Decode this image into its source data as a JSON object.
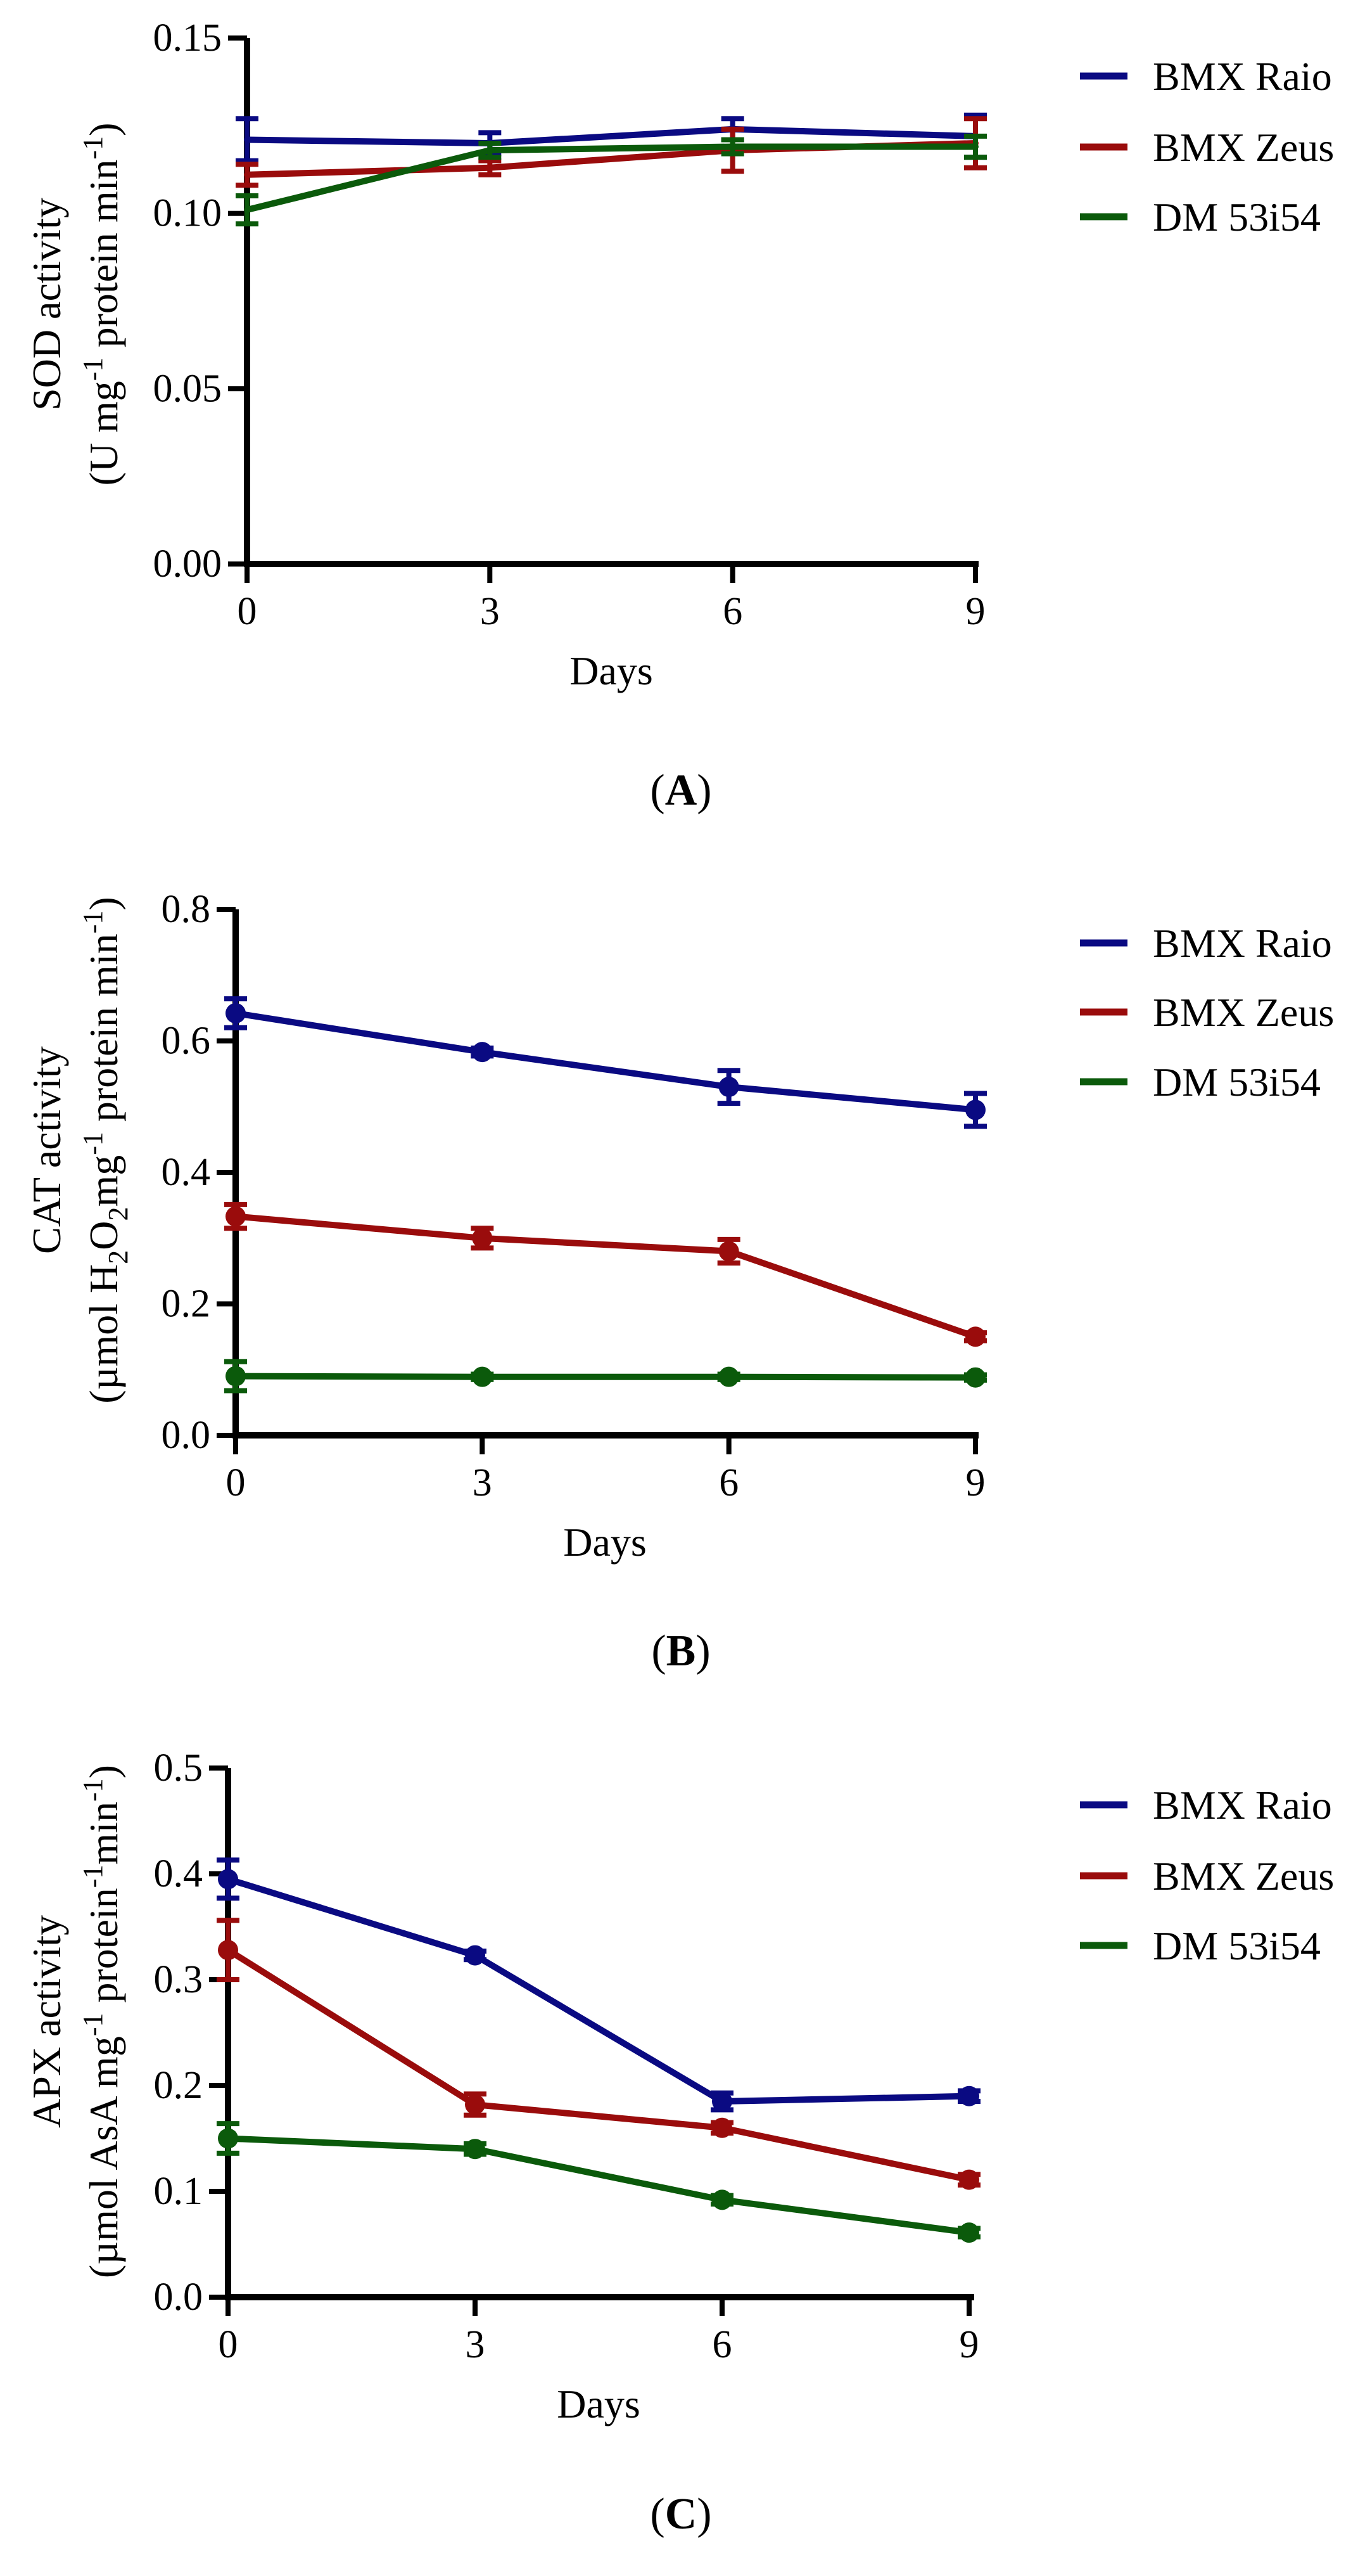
{
  "colors": {
    "BMX Raio": "#0a0a82",
    "BMX Zeus": "#9a0c0c",
    "DM 53i54": "#0b5a0b"
  },
  "chart_data": [
    {
      "type": "line",
      "panel": "A",
      "panel_label": {
        "open": "(",
        "letter": "A",
        "close": ")"
      },
      "xlabel": "Days",
      "ylabel_line1": "SOD activity",
      "ylabel_line2": {
        "pre": "(U mg",
        "sup1": "-1",
        "mid": " protein min",
        "sup2": "-1",
        "post": ")"
      },
      "x": [
        0,
        3,
        6,
        9
      ],
      "xlim": [
        0,
        9
      ],
      "ylim": [
        0,
        0.15
      ],
      "yticks": [
        0,
        0.05,
        0.1,
        0.15
      ],
      "ytick_labels": [
        "0.00",
        "0.05",
        "0.10",
        "0.15"
      ],
      "xtick_labels": [
        "0",
        "3",
        "6",
        "9"
      ],
      "markers": false,
      "legend_position": "right",
      "series": [
        {
          "name": "BMX Raio",
          "values": [
            0.121,
            0.12,
            0.124,
            0.122
          ],
          "errors": [
            0.006,
            0.003,
            0.003,
            0.006
          ]
        },
        {
          "name": "BMX Zeus",
          "values": [
            0.111,
            0.113,
            0.118,
            0.12
          ],
          "errors": [
            0.003,
            0.002,
            0.006,
            0.007
          ]
        },
        {
          "name": "DM 53i54",
          "values": [
            0.101,
            0.118,
            0.119,
            0.119
          ],
          "errors": [
            0.004,
            0.002,
            0.002,
            0.003
          ]
        }
      ]
    },
    {
      "type": "line",
      "panel": "B",
      "panel_label": {
        "open": "(",
        "letter": "B",
        "close": ")"
      },
      "xlabel": "Days",
      "ylabel_line1": "CAT activity",
      "ylabel_line2": {
        "pre": "(µmol H",
        "sub1": "2",
        "mid1": "O",
        "sub2": "2",
        "mid2": "mg",
        "sup1": "-1",
        "mid3": " protein min",
        "sup2": "-1",
        "post": ")"
      },
      "x": [
        0,
        3,
        6,
        9
      ],
      "xlim": [
        0,
        9
      ],
      "ylim": [
        0,
        0.8
      ],
      "yticks": [
        0,
        0.2,
        0.4,
        0.6,
        0.8
      ],
      "ytick_labels": [
        "0.0",
        "0.2",
        "0.4",
        "0.6",
        "0.8"
      ],
      "xtick_labels": [
        "0",
        "3",
        "6",
        "9"
      ],
      "markers": true,
      "legend_position": "right",
      "series": [
        {
          "name": "BMX Raio",
          "values": [
            0.642,
            0.583,
            0.53,
            0.495
          ],
          "errors": [
            0.022,
            0.006,
            0.025,
            0.025
          ]
        },
        {
          "name": "BMX Zeus",
          "values": [
            0.333,
            0.3,
            0.28,
            0.15
          ],
          "errors": [
            0.018,
            0.015,
            0.018,
            0.006
          ]
        },
        {
          "name": "DM 53i54",
          "values": [
            0.09,
            0.089,
            0.089,
            0.088
          ],
          "errors": [
            0.022,
            0.004,
            0.004,
            0.004
          ]
        }
      ]
    },
    {
      "type": "line",
      "panel": "C",
      "panel_label": {
        "open": "(",
        "letter": "C",
        "close": ")"
      },
      "xlabel": "Days",
      "ylabel_line1": "APX activity",
      "ylabel_line2": {
        "pre": "(µmol AsA mg",
        "sup1": "-1",
        "mid": " protein",
        "sup2": "-1",
        "mid2": "min",
        "sup3": "-1",
        "post": ")"
      },
      "x": [
        0,
        3,
        6,
        9
      ],
      "xlim": [
        0,
        9
      ],
      "ylim": [
        0,
        0.5
      ],
      "yticks": [
        0,
        0.1,
        0.2,
        0.3,
        0.4,
        0.5
      ],
      "ytick_labels": [
        "0.0",
        "0.1",
        "0.2",
        "0.3",
        "0.4",
        "0.5"
      ],
      "xtick_labels": [
        "0",
        "3",
        "6",
        "9"
      ],
      "markers": true,
      "legend_position": "right",
      "series": [
        {
          "name": "BMX Raio",
          "values": [
            0.395,
            0.323,
            0.185,
            0.19
          ],
          "errors": [
            0.018,
            0.004,
            0.008,
            0.005
          ]
        },
        {
          "name": "BMX Zeus",
          "values": [
            0.328,
            0.182,
            0.16,
            0.111
          ],
          "errors": [
            0.028,
            0.01,
            0.005,
            0.005
          ]
        },
        {
          "name": "DM 53i54",
          "values": [
            0.15,
            0.14,
            0.092,
            0.061
          ],
          "errors": [
            0.014,
            0.005,
            0.004,
            0.004
          ]
        }
      ]
    }
  ]
}
